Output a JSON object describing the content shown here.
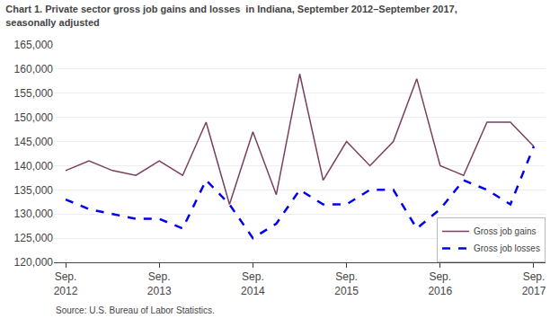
{
  "chart_data": {
    "type": "line",
    "title": "Chart 1. Private sector gross job gains and losses  in Indiana, September 2012–September 2017,\nseasonally adjusted",
    "annotations": [
      "Source: U.S. Bureau of Labor Statistics."
    ],
    "categories": [
      "Sep.\n2012",
      null,
      null,
      null,
      "Sep.\n2013",
      null,
      null,
      null,
      "Sep.\n2014",
      null,
      null,
      null,
      "Sep.\n2015",
      null,
      null,
      null,
      "Sep.\n2016",
      null,
      null,
      null,
      "Sep.\n2017"
    ],
    "series": [
      {
        "name": "Gross job gains",
        "color": "#7B3F5E",
        "line_style": "solid",
        "values": [
          139000,
          141000,
          139000,
          138000,
          141000,
          138000,
          149000,
          132000,
          147000,
          134000,
          159000,
          137000,
          145000,
          140000,
          145000,
          158000,
          140000,
          138000,
          149000,
          149000,
          144000
        ]
      },
      {
        "name": "Gross job losses",
        "color": "#0000EE",
        "line_style": "dashed",
        "values": [
          133000,
          131000,
          130000,
          129000,
          129000,
          127000,
          137000,
          132000,
          125000,
          128000,
          135000,
          132000,
          132000,
          135000,
          135000,
          127000,
          131000,
          137000,
          135000,
          132000,
          144000
        ]
      }
    ],
    "ylim": [
      120000,
      165000
    ],
    "yticks": [
      {
        "value": 120000,
        "label": "120,000"
      },
      {
        "value": 125000,
        "label": "125,000"
      },
      {
        "value": 130000,
        "label": "130,000"
      },
      {
        "value": 135000,
        "label": "135,000"
      },
      {
        "value": 140000,
        "label": "140,000"
      },
      {
        "value": 145000,
        "label": "145,000"
      },
      {
        "value": 150000,
        "label": "150,000"
      },
      {
        "value": 155000,
        "label": "155,000"
      },
      {
        "value": 160000,
        "label": "160,000"
      },
      {
        "value": 165000,
        "label": "165,000"
      }
    ],
    "grid": true,
    "legend": "lower right"
  }
}
